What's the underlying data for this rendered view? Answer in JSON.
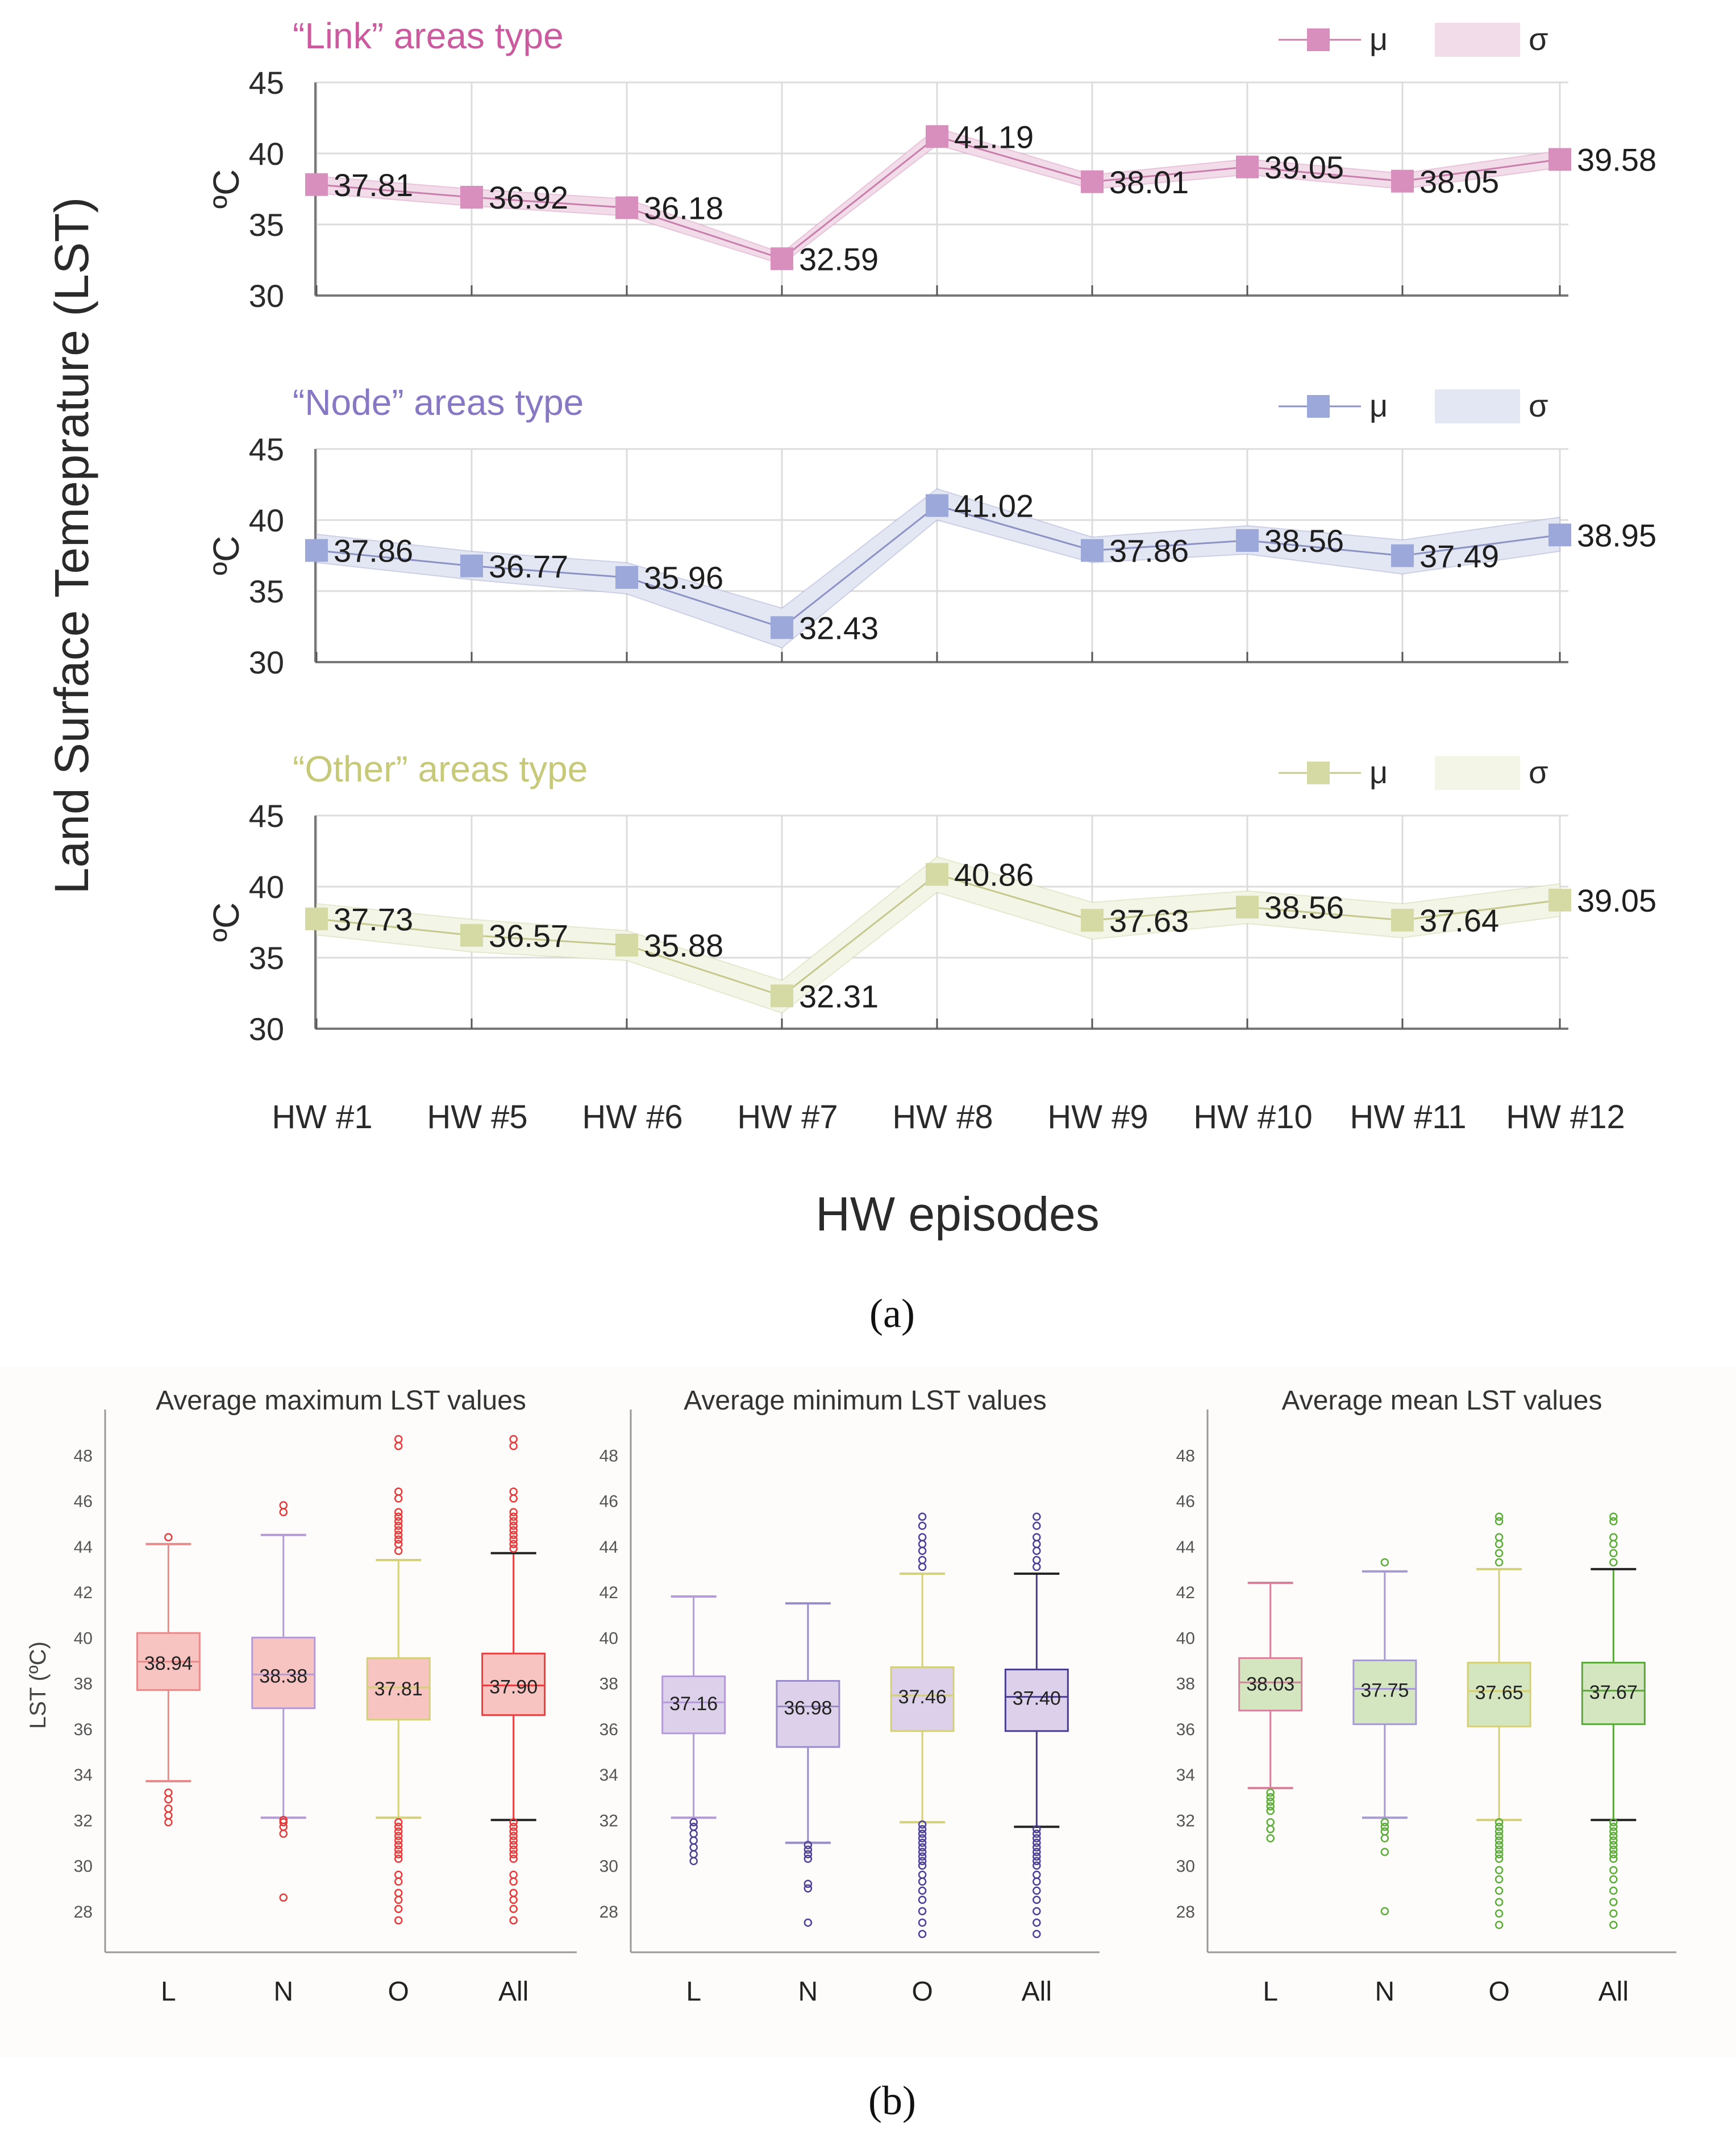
{
  "figure": {
    "panel_a_caption": "(a)",
    "panel_b_caption": "(b)",
    "shared_ylabel": "Land Surface Temeprature (LST)",
    "shared_xlabel": "HW episodes",
    "legend_mu": "μ",
    "legend_sigma": "σ"
  },
  "chart_data": [
    {
      "type": "line",
      "title": "“Link” areas type",
      "ylabel": "ºC",
      "xlabel": "HW episodes",
      "ylim": [
        30,
        45
      ],
      "yticks": [
        "30",
        "35",
        "40",
        "45"
      ],
      "categories": [
        "HW #1",
        "HW #5",
        "HW #6",
        "HW #7",
        "HW #8",
        "HW #9",
        "HW #10",
        "HW #11",
        "HW #12"
      ],
      "series": [
        {
          "name": "μ",
          "values": [
            37.81,
            36.92,
            36.18,
            32.59,
            41.19,
            38.01,
            39.05,
            38.05,
            39.58
          ],
          "labels": [
            "37.81",
            "36.92",
            "36.18",
            "32.59",
            "41.19",
            "38.01",
            "39.05",
            "38.05",
            "39.58"
          ]
        },
        {
          "name": "σ",
          "band_low": [
            37.2,
            36.3,
            35.6,
            32.2,
            40.6,
            37.5,
            38.5,
            37.5,
            39.0
          ],
          "band_high": [
            38.4,
            37.5,
            36.8,
            33.0,
            41.8,
            38.5,
            39.6,
            38.6,
            40.2
          ]
        }
      ],
      "colors": {
        "line": "#c97fab",
        "marker": "#d98fbe",
        "band": "#f3dcea",
        "title": "#cc5a9e"
      }
    },
    {
      "type": "line",
      "title": "“Node” areas type",
      "ylabel": "ºC",
      "xlabel": "HW episodes",
      "ylim": [
        30,
        45
      ],
      "yticks": [
        "30",
        "35",
        "40",
        "45"
      ],
      "categories": [
        "HW #1",
        "HW #5",
        "HW #6",
        "HW #7",
        "HW #8",
        "HW #9",
        "HW #10",
        "HW #11",
        "HW #12"
      ],
      "series": [
        {
          "name": "μ",
          "values": [
            37.86,
            36.77,
            35.96,
            32.43,
            41.02,
            37.86,
            38.56,
            37.49,
            38.95
          ],
          "labels": [
            "37.86",
            "36.77",
            "35.96",
            "32.43",
            "41.02",
            "37.86",
            "38.56",
            "37.49",
            "38.95"
          ]
        },
        {
          "name": "σ",
          "band_low": [
            37.0,
            35.8,
            34.8,
            31.0,
            40.0,
            37.0,
            37.6,
            36.2,
            37.8
          ],
          "band_high": [
            39.0,
            37.8,
            37.0,
            33.8,
            42.2,
            38.8,
            39.6,
            38.6,
            40.2
          ]
        }
      ],
      "colors": {
        "line": "#8c93c4",
        "marker": "#9ba8d9",
        "band": "#e3e7f3",
        "title": "#8878c4"
      }
    },
    {
      "type": "line",
      "title": "“Other” areas type",
      "ylabel": "ºC",
      "xlabel": "HW episodes",
      "ylim": [
        30,
        45
      ],
      "yticks": [
        "30",
        "35",
        "40",
        "45"
      ],
      "categories": [
        "HW #1",
        "HW #5",
        "HW #6",
        "HW #7",
        "HW #8",
        "HW #9",
        "HW #10",
        "HW #11",
        "HW #12"
      ],
      "series": [
        {
          "name": "μ",
          "values": [
            37.73,
            36.57,
            35.88,
            32.31,
            40.86,
            37.63,
            38.56,
            37.64,
            39.05
          ],
          "labels": [
            "37.73",
            "36.57",
            "35.88",
            "32.31",
            "40.86",
            "37.63",
            "38.56",
            "37.64",
            "39.05"
          ]
        },
        {
          "name": "σ",
          "band_low": [
            36.6,
            35.4,
            34.8,
            31.1,
            39.6,
            36.3,
            37.4,
            36.4,
            37.9
          ],
          "band_high": [
            38.8,
            37.7,
            36.9,
            33.4,
            42.1,
            38.9,
            39.7,
            38.8,
            40.2
          ]
        }
      ],
      "colors": {
        "line": "#c5c98e",
        "marker": "#d5d9a3",
        "band": "#f3f5e6",
        "title": "#c5c978"
      }
    },
    {
      "type": "box",
      "title": "Average maximum LST values",
      "ylabel": "LST (ºC)",
      "ylim": [
        26.2,
        50
      ],
      "yticks": [
        "28",
        "30",
        "32",
        "34",
        "36",
        "38",
        "40",
        "42",
        "44",
        "46",
        "48"
      ],
      "categories": [
        "L",
        "N",
        "O",
        "All"
      ],
      "boxes": [
        {
          "q1": 37.7,
          "median": 38.94,
          "q3": 40.2,
          "whisker_low": 33.7,
          "whisker_high": 44.1,
          "outliers": [
            32.2,
            31.9,
            32.5,
            32.9,
            33.2,
            44.4
          ],
          "label": "38.94",
          "color": "#e8898a",
          "fill": "#f8c4c2"
        },
        {
          "q1": 36.9,
          "median": 38.38,
          "q3": 40.0,
          "whisker_low": 32.1,
          "whisker_high": 44.5,
          "outliers": [
            32.0,
            31.9,
            31.7,
            31.4,
            28.6,
            45.5,
            45.8
          ],
          "label": "38.38",
          "color": "#b49ad6",
          "fill": "#f8c4c2"
        },
        {
          "q1": 36.4,
          "median": 37.81,
          "q3": 39.1,
          "whisker_low": 32.1,
          "whisker_high": 43.4,
          "outliers": [
            31.9,
            31.7,
            31.5,
            31.3,
            31.1,
            30.9,
            30.7,
            30.5,
            30.3,
            29.6,
            29.3,
            28.8,
            28.5,
            28.1,
            27.6,
            43.8,
            44.1,
            44.3,
            44.5,
            44.7,
            44.9,
            45.1,
            45.3,
            45.5,
            46.1,
            46.4,
            48.4,
            48.7
          ],
          "label": "37.81",
          "color": "#d4d07a",
          "fill": "#f8c4c2"
        },
        {
          "q1": 36.6,
          "median": 37.9,
          "q3": 39.3,
          "whisker_low": 32.0,
          "whisker_high": 43.7,
          "outliers": [
            31.9,
            31.7,
            31.5,
            31.3,
            31.1,
            30.9,
            30.7,
            30.5,
            30.3,
            29.6,
            29.3,
            28.8,
            28.5,
            28.1,
            27.6,
            43.9,
            44.1,
            44.3,
            44.5,
            44.7,
            44.9,
            45.1,
            45.3,
            45.5,
            46.1,
            46.4,
            48.4,
            48.7
          ],
          "label": "37.90",
          "color": "#e84040",
          "fill": "#f8c4c2"
        }
      ],
      "outlier_color": "#e83838"
    },
    {
      "type": "box",
      "title": "Average minimum LST values",
      "ylabel": "",
      "ylim": [
        26.2,
        50
      ],
      "yticks": [
        "28",
        "30",
        "32",
        "34",
        "36",
        "38",
        "40",
        "42",
        "44",
        "46",
        "48"
      ],
      "categories": [
        "L",
        "N",
        "O",
        "All"
      ],
      "boxes": [
        {
          "q1": 35.8,
          "median": 37.16,
          "q3": 38.3,
          "whisker_low": 32.1,
          "whisker_high": 41.8,
          "outliers": [
            31.9,
            31.7,
            31.4,
            31.1,
            30.8,
            30.5,
            30.2
          ],
          "label": "37.16",
          "color": "#b49ad6",
          "fill": "#ddd0ea"
        },
        {
          "q1": 35.2,
          "median": 36.98,
          "q3": 38.1,
          "whisker_low": 31.0,
          "whisker_high": 41.5,
          "outliers": [
            30.9,
            30.7,
            30.5,
            30.3,
            29.2,
            29.0,
            27.5
          ],
          "label": "36.98",
          "color": "#9a8cc8",
          "fill": "#ddd0ea"
        },
        {
          "q1": 35.9,
          "median": 37.46,
          "q3": 38.7,
          "whisker_low": 31.9,
          "whisker_high": 42.8,
          "outliers": [
            31.8,
            31.6,
            31.4,
            31.2,
            31.0,
            30.8,
            30.6,
            30.4,
            30.2,
            30.0,
            29.6,
            29.3,
            28.9,
            28.5,
            28.0,
            27.5,
            27.0,
            43.1,
            43.4,
            43.8,
            44.1,
            44.4,
            44.9,
            45.3
          ],
          "label": "37.46",
          "color": "#d4d07a",
          "fill": "#ddd0ea"
        },
        {
          "q1": 35.9,
          "median": 37.4,
          "q3": 38.6,
          "whisker_low": 31.7,
          "whisker_high": 42.8,
          "outliers": [
            31.6,
            31.4,
            31.2,
            31.0,
            30.8,
            30.6,
            30.4,
            30.2,
            30.0,
            29.6,
            29.3,
            28.9,
            28.5,
            28.0,
            27.5,
            27.0,
            43.1,
            43.4,
            43.8,
            44.1,
            44.4,
            44.9,
            45.3
          ],
          "label": "37.40",
          "color": "#4a3d8c",
          "fill": "#ddd0ea"
        }
      ],
      "outlier_color": "#4b3f9a"
    },
    {
      "type": "box",
      "title": "Average mean LST values",
      "ylabel": "",
      "ylim": [
        26.2,
        50
      ],
      "yticks": [
        "28",
        "30",
        "32",
        "34",
        "36",
        "38",
        "40",
        "42",
        "44",
        "46",
        "48"
      ],
      "categories": [
        "L",
        "N",
        "O",
        "All"
      ],
      "boxes": [
        {
          "q1": 36.8,
          "median": 38.03,
          "q3": 39.1,
          "whisker_low": 33.4,
          "whisker_high": 42.4,
          "outliers": [
            33.2,
            33.0,
            32.8,
            32.6,
            32.4,
            31.9,
            31.6,
            31.2
          ],
          "label": "38.03",
          "color": "#d9809c",
          "fill": "#d3e6c0"
        },
        {
          "q1": 36.2,
          "median": 37.75,
          "q3": 39.0,
          "whisker_low": 32.1,
          "whisker_high": 42.9,
          "outliers": [
            31.9,
            31.7,
            31.5,
            31.2,
            30.6,
            28.0,
            43.3
          ],
          "label": "37.75",
          "color": "#a69ad0",
          "fill": "#d3e6c0"
        },
        {
          "q1": 36.1,
          "median": 37.65,
          "q3": 38.9,
          "whisker_low": 32.0,
          "whisker_high": 43.0,
          "outliers": [
            31.9,
            31.7,
            31.5,
            31.3,
            31.1,
            30.9,
            30.7,
            30.5,
            30.3,
            29.8,
            29.4,
            28.9,
            28.4,
            27.9,
            27.4,
            43.3,
            43.7,
            44.1,
            44.4,
            45.1,
            45.3
          ],
          "label": "37.65",
          "color": "#d4d07a",
          "fill": "#d3e6c0"
        },
        {
          "q1": 36.2,
          "median": 37.67,
          "q3": 38.9,
          "whisker_low": 32.0,
          "whisker_high": 43.0,
          "outliers": [
            31.9,
            31.7,
            31.5,
            31.3,
            31.1,
            30.9,
            30.7,
            30.5,
            30.3,
            29.8,
            29.4,
            28.9,
            28.4,
            27.9,
            27.4,
            43.3,
            43.7,
            44.1,
            44.4,
            45.1,
            45.3
          ],
          "label": "37.67",
          "color": "#5aa83a",
          "fill": "#d3e6c0"
        }
      ],
      "outlier_color": "#5aae36"
    }
  ]
}
